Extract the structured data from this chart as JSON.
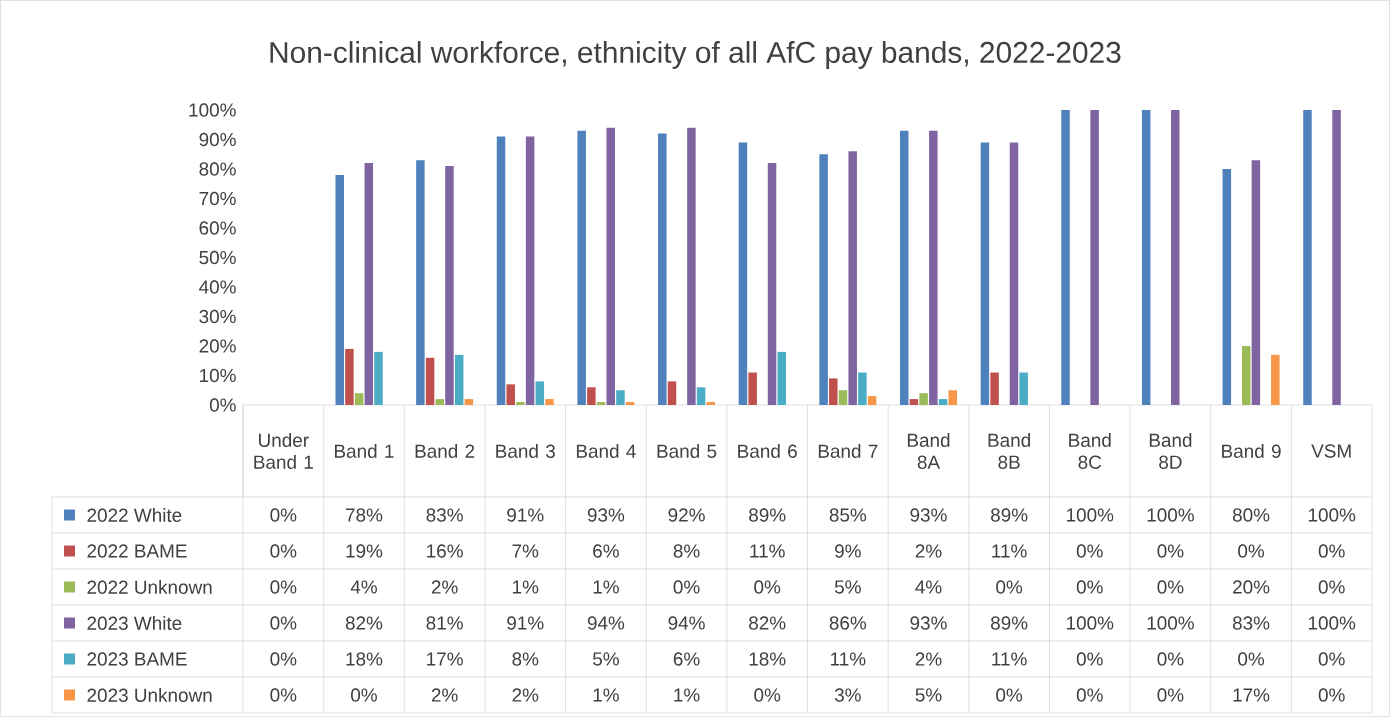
{
  "chart_data": {
    "type": "bar",
    "title": "Non-clinical workforce, ethnicity of all AfC pay bands, 2022-2023",
    "categories": [
      "Under Band 1",
      "Band 1",
      "Band 2",
      "Band 3",
      "Band 4",
      "Band 5",
      "Band 6",
      "Band 7",
      "Band 8A",
      "Band 8B",
      "Band 8C",
      "Band 8D",
      "Band 9",
      "VSM"
    ],
    "series": [
      {
        "name": "2022 White",
        "color": "#4f81bd",
        "values": [
          0,
          78,
          83,
          91,
          93,
          92,
          89,
          85,
          93,
          89,
          100,
          100,
          80,
          100
        ],
        "value_labels": [
          "0%",
          "78%",
          "83%",
          "91%",
          "93%",
          "92%",
          "89%",
          "85%",
          "93%",
          "89%",
          "100%",
          "100%",
          "80%",
          "100%"
        ]
      },
      {
        "name": "2022 BAME",
        "color": "#c0504d",
        "values": [
          0,
          19,
          16,
          7,
          6,
          8,
          11,
          9,
          2,
          11,
          0,
          0,
          0,
          0
        ],
        "value_labels": [
          "0%",
          "19%",
          "16%",
          "7%",
          "6%",
          "8%",
          "11%",
          "9%",
          "2%",
          "11%",
          "0%",
          "0%",
          "0%",
          "0%"
        ]
      },
      {
        "name": "2022 Unknown",
        "color": "#9bbb59",
        "values": [
          0,
          4,
          2,
          1,
          1,
          0,
          0,
          5,
          4,
          0,
          0,
          0,
          20,
          0
        ],
        "value_labels": [
          "0%",
          "4%",
          "2%",
          "1%",
          "1%",
          "0%",
          "0%",
          "5%",
          "4%",
          "0%",
          "0%",
          "0%",
          "20%",
          "0%"
        ]
      },
      {
        "name": "2023 White",
        "color": "#8064a2",
        "values": [
          0,
          82,
          81,
          91,
          94,
          94,
          82,
          86,
          93,
          89,
          100,
          100,
          83,
          100
        ],
        "value_labels": [
          "0%",
          "82%",
          "81%",
          "91%",
          "94%",
          "94%",
          "82%",
          "86%",
          "93%",
          "89%",
          "100%",
          "100%",
          "83%",
          "100%"
        ]
      },
      {
        "name": "2023 BAME",
        "color": "#4bacc6",
        "values": [
          0,
          18,
          17,
          8,
          5,
          6,
          18,
          11,
          2,
          11,
          0,
          0,
          0,
          0
        ],
        "value_labels": [
          "0%",
          "18%",
          "17%",
          "8%",
          "5%",
          "6%",
          "18%",
          "11%",
          "2%",
          "11%",
          "0%",
          "0%",
          "0%",
          "0%"
        ]
      },
      {
        "name": "2023 Unknown",
        "color": "#f79646",
        "values": [
          0,
          0,
          2,
          2,
          1,
          1,
          0,
          3,
          5,
          0,
          0,
          0,
          17,
          0
        ],
        "value_labels": [
          "0%",
          "0%",
          "2%",
          "2%",
          "1%",
          "1%",
          "0%",
          "3%",
          "5%",
          "0%",
          "0%",
          "0%",
          "17%",
          "0%"
        ]
      }
    ],
    "ylim": [
      0,
      100
    ],
    "yticks": [
      {
        "value": 0,
        "label": "0%"
      },
      {
        "value": 10,
        "label": "10%"
      },
      {
        "value": 20,
        "label": "20%"
      },
      {
        "value": 30,
        "label": "30%"
      },
      {
        "value": 40,
        "label": "40%"
      },
      {
        "value": 50,
        "label": "50%"
      },
      {
        "value": 60,
        "label": "60%"
      },
      {
        "value": 70,
        "label": "70%"
      },
      {
        "value": 80,
        "label": "80%"
      },
      {
        "value": 90,
        "label": "90%"
      },
      {
        "value": 100,
        "label": "100%"
      }
    ],
    "legend": "bottom"
  }
}
